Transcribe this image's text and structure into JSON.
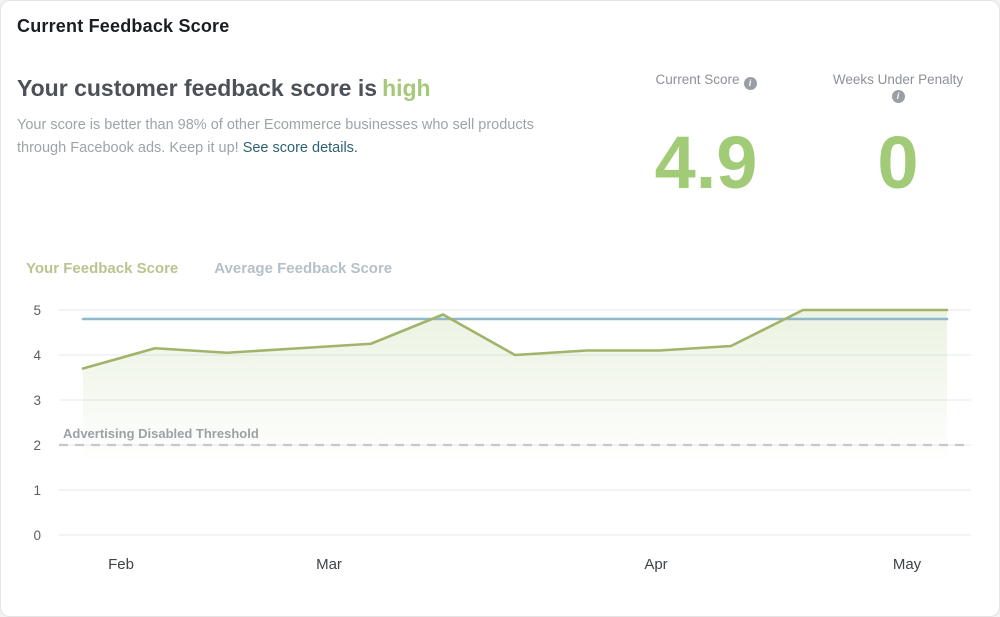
{
  "page": {
    "title": "Current Feedback Score"
  },
  "summary": {
    "heading_prefix": "Your customer feedback score is",
    "heading_status": "high",
    "body_text": "Your score is better than 98% of other Ecommerce businesses who sell products through Facebook ads. Keep it up!",
    "link_text": "See score details."
  },
  "stats": {
    "current_score": {
      "label": "Current Score",
      "value": "4.9",
      "info_icon": "info-icon"
    },
    "weeks_penalty": {
      "label": "Weeks Under Penalty",
      "value": "0",
      "info_icon": "info-icon"
    }
  },
  "legend": [
    {
      "label": "Your Feedback Score",
      "color": "#b9c58e"
    },
    {
      "label": "Average Feedback Score",
      "color": "#b5c1c8"
    }
  ],
  "colors": {
    "accent_green": "#a2cb77",
    "score_line_green": "#a1b469",
    "area_fill_green": "#a3c578",
    "average_line_blue": "#8fb9ca",
    "threshold_dash_gray": "#c6c8ca",
    "gridline_gray": "#ebedf0",
    "link_teal": "#2d6272"
  },
  "chart_data": {
    "type": "line",
    "title": "",
    "xlabel": "",
    "ylabel": "",
    "x": [
      0,
      1,
      2,
      3,
      4,
      5,
      6,
      7,
      8,
      9,
      10,
      11,
      12
    ],
    "x_unit": "week",
    "x_tick_labels": [
      "Feb",
      "Mar",
      "Apr",
      "May"
    ],
    "y_ticks": [
      0,
      1,
      2,
      3,
      4,
      5
    ],
    "ylim": [
      0,
      5
    ],
    "grid": "horizontal",
    "legend_position": "top-left",
    "series": [
      {
        "name": "Your Feedback Score",
        "color": "#a1b469",
        "fill_color": "#a3c578",
        "fill_under": true,
        "values": [
          3.7,
          4.15,
          4.05,
          4.15,
          4.25,
          4.9,
          4.0,
          4.1,
          4.1,
          4.2,
          5.0,
          5.0,
          5.0
        ]
      },
      {
        "name": "Average Feedback Score",
        "color": "#8fb9ca",
        "fill_under": false,
        "values": [
          4.8,
          4.8,
          4.8,
          4.8,
          4.8,
          4.8,
          4.8,
          4.8,
          4.8,
          4.8,
          4.8,
          4.8,
          4.8
        ]
      }
    ],
    "threshold": {
      "label": "Advertising Disabled Threshold",
      "value": 2,
      "style": "dashed"
    }
  }
}
